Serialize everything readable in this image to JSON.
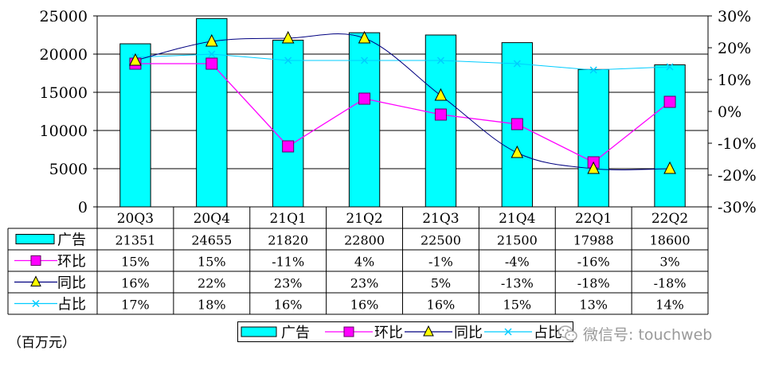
{
  "chart_data": {
    "type": "bar",
    "categories": [
      "20Q3",
      "20Q4",
      "21Q1",
      "21Q2",
      "21Q3",
      "21Q4",
      "22Q1",
      "22Q2"
    ],
    "y_left": {
      "ticks": [
        "25000",
        "20000",
        "15000",
        "10000",
        "5000",
        "0"
      ],
      "ylim": [
        0,
        25000
      ]
    },
    "y_right": {
      "ticks": [
        "30%",
        "20%",
        "10%",
        "0%",
        "-10%",
        "-20%",
        "-30%"
      ],
      "ylim": [
        -30,
        30
      ]
    },
    "series": [
      {
        "name": "广告",
        "kind": "bar",
        "axis": "left",
        "color": "#00ffff",
        "values": [
          21351,
          24655,
          21820,
          22800,
          22500,
          21500,
          17988,
          18600
        ],
        "labels": [
          "21351",
          "24655",
          "21820",
          "22800",
          "22500",
          "21500",
          "17988",
          "18600"
        ]
      },
      {
        "name": "环比",
        "kind": "line",
        "axis": "right",
        "marker": "square",
        "color": "#ff00ff",
        "values": [
          15,
          15,
          -11,
          4,
          -1,
          -4,
          -16,
          3
        ],
        "labels": [
          "15%",
          "15%",
          "-11%",
          "4%",
          "-1%",
          "-4%",
          "-16%",
          "3%"
        ]
      },
      {
        "name": "同比",
        "kind": "line",
        "axis": "right",
        "marker": "triangle",
        "color": "#000080",
        "values": [
          16,
          22,
          23,
          23,
          5,
          -13,
          -18,
          -18
        ],
        "labels": [
          "16%",
          "22%",
          "23%",
          "23%",
          "5%",
          "-13%",
          "-18%",
          "-18%"
        ]
      },
      {
        "name": "占比",
        "kind": "line",
        "axis": "right",
        "marker": "x",
        "color": "#00ccff",
        "values": [
          17,
          18,
          16,
          16,
          16,
          15,
          13,
          14
        ],
        "labels": [
          "17%",
          "18%",
          "16%",
          "16%",
          "16%",
          "15%",
          "13%",
          "14%"
        ]
      }
    ],
    "unit_label": "（百万元）",
    "legend_position": "bottom",
    "grid": true
  },
  "watermark": {
    "text": "微信号: touchweb",
    "icon": "wechat-icon"
  }
}
